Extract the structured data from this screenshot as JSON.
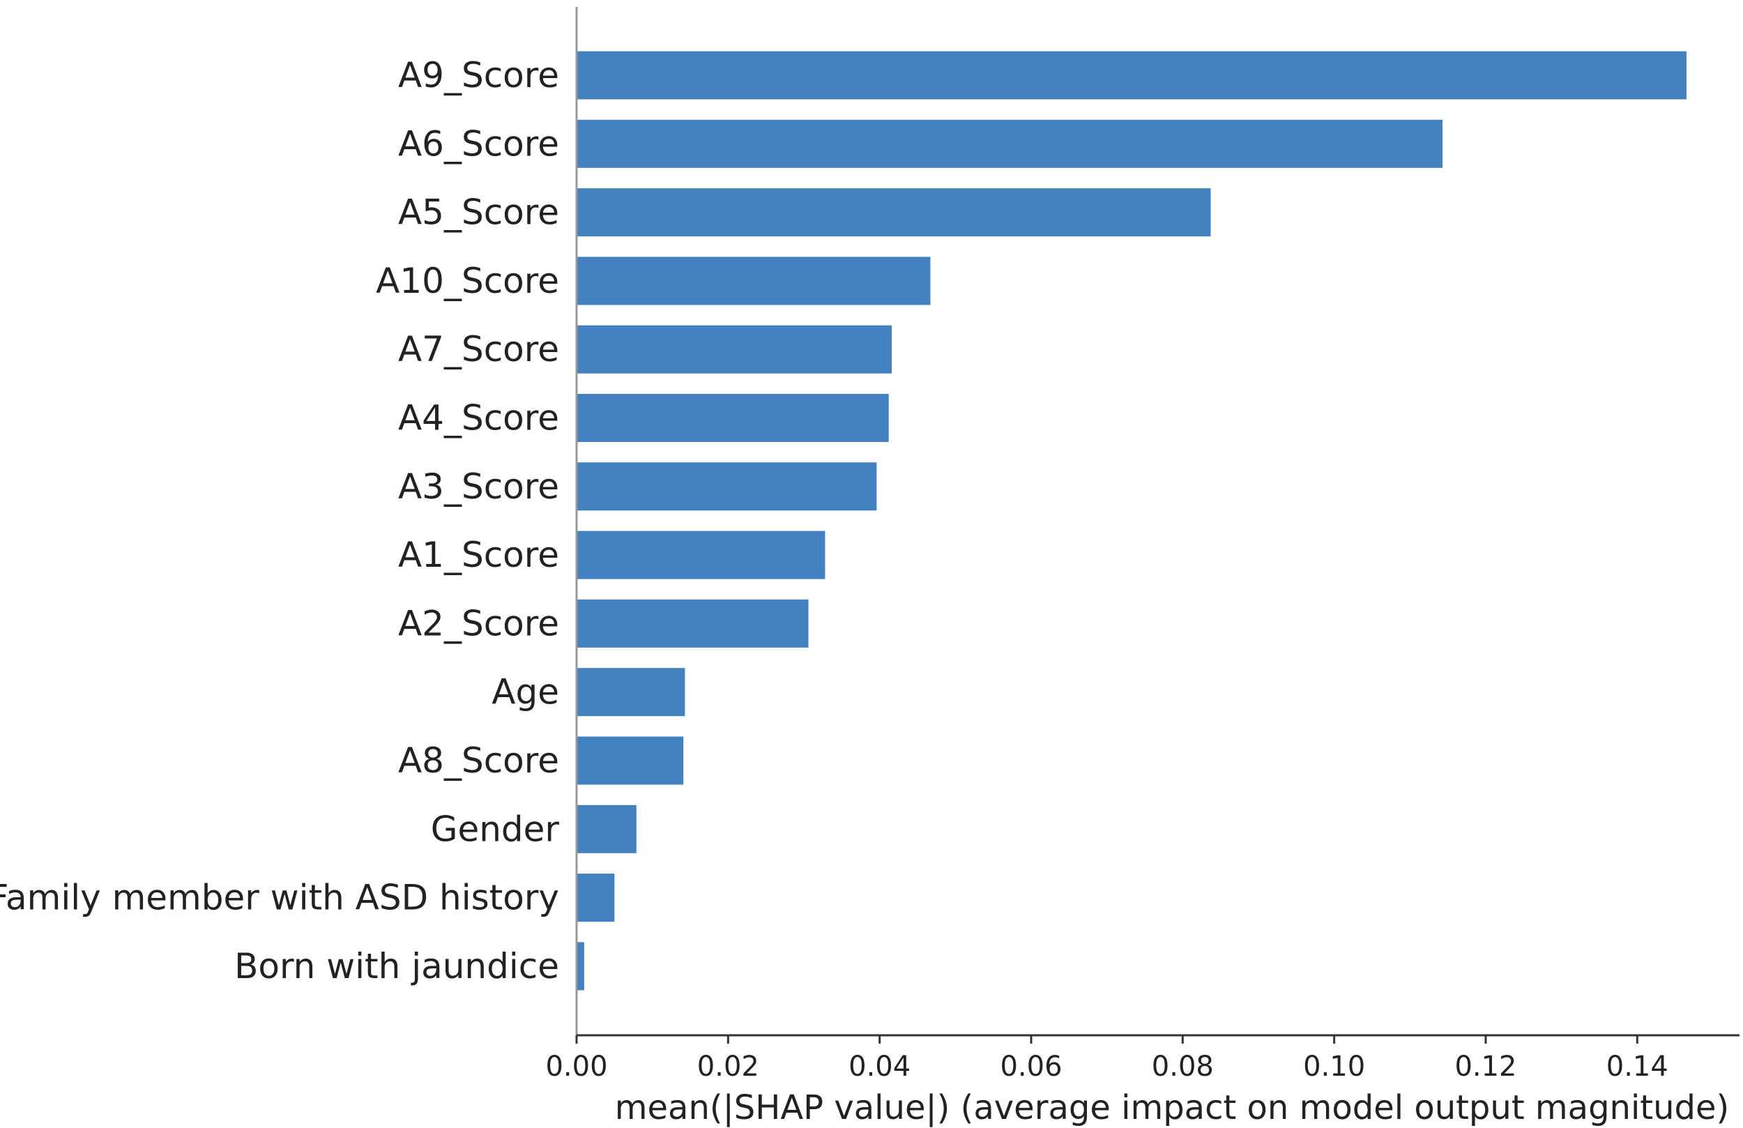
{
  "chart_data": {
    "type": "bar",
    "orientation": "horizontal",
    "title": "",
    "xlabel": "mean(|SHAP value|) (average impact on model output magnitude)",
    "ylabel": "",
    "xlim": [
      0,
      0.1535
    ],
    "xticks": [
      0.0,
      0.02,
      0.04,
      0.06,
      0.08,
      0.1,
      0.12,
      0.14
    ],
    "xtick_labels": [
      "0.00",
      "0.02",
      "0.04",
      "0.06",
      "0.08",
      "0.10",
      "0.12",
      "0.14"
    ],
    "grid": false,
    "bar_color": "#4381c1",
    "categories": [
      "A9_Score",
      "A6_Score",
      "A5_Score",
      "A10_Score",
      "A7_Score",
      "A4_Score",
      "A3_Score",
      "A1_Score",
      "A2_Score",
      "Age",
      "A8_Score",
      "Gender",
      "Family member with ASD history",
      "Born with jaundice"
    ],
    "values": [
      0.1465,
      0.1143,
      0.0837,
      0.0467,
      0.0416,
      0.0412,
      0.0396,
      0.0328,
      0.0306,
      0.0143,
      0.0141,
      0.0079,
      0.005,
      0.001
    ]
  }
}
